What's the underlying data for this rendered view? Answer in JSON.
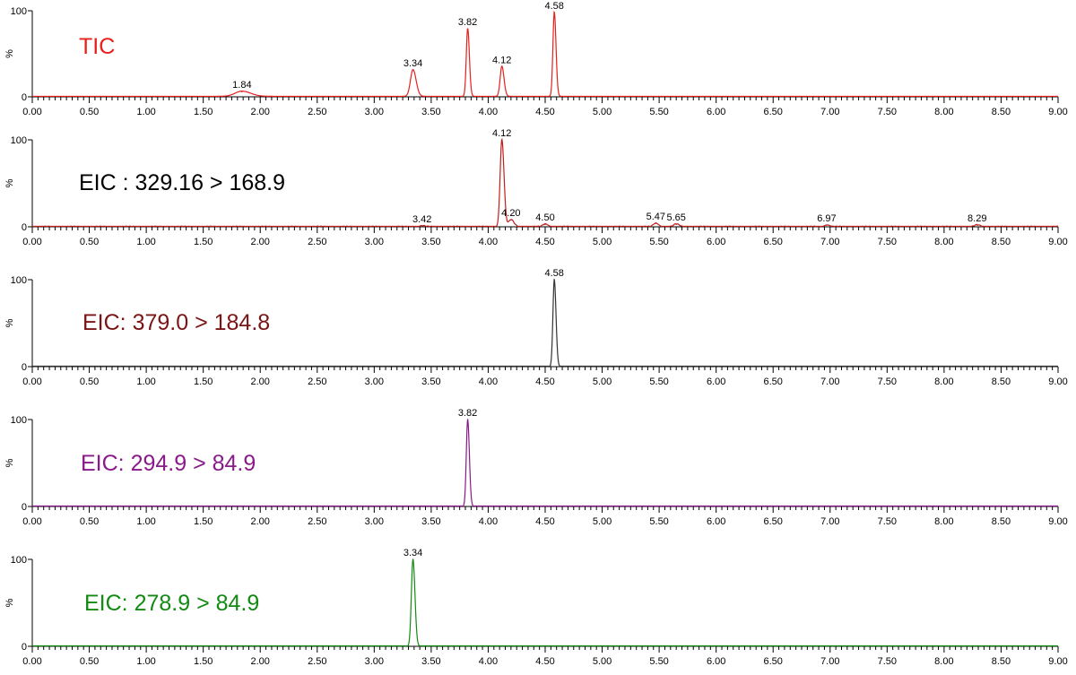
{
  "colors": {
    "axis": "#000000",
    "panel_0": "#e8201c",
    "panel_1": "#000000",
    "panel_2": "#7b1414",
    "panel_3": "#8a1a8a",
    "panel_4": "#138a13",
    "trace_0": "#e8201c",
    "trace_1": "#c0201c",
    "trace_2": "#333333",
    "trace_3": "#8a1a8a",
    "trace_4": "#138a13"
  },
  "chart_data": [
    {
      "type": "line",
      "title": "TIC",
      "xlabel": "",
      "ylabel": "%",
      "xlim": [
        0.0,
        9.0
      ],
      "ylim": [
        0,
        100
      ],
      "y_ticks": [
        "0",
        "100"
      ],
      "x_tick_labels": [
        "0.00",
        "0.50",
        "1.00",
        "1.50",
        "2.00",
        "2.50",
        "3.00",
        "3.50",
        "4.00",
        "4.50",
        "5.00",
        "5.50",
        "6.00",
        "6.50",
        "7.00",
        "7.50",
        "8.00",
        "8.50",
        "9.00"
      ],
      "peaks": [
        {
          "x": 1.84,
          "height": 6,
          "label": "1.84"
        },
        {
          "x": 3.34,
          "height": 31,
          "label": "3.34"
        },
        {
          "x": 3.82,
          "height": 79,
          "label": "3.82"
        },
        {
          "x": 4.12,
          "height": 35,
          "label": "4.12"
        },
        {
          "x": 4.58,
          "height": 98,
          "label": "4.58"
        }
      ]
    },
    {
      "type": "line",
      "title": "EIC : 329.16 > 168.9",
      "xlabel": "",
      "ylabel": "%",
      "xlim": [
        0.0,
        9.0
      ],
      "ylim": [
        0,
        100
      ],
      "y_ticks": [
        "0",
        "100"
      ],
      "x_tick_labels": [
        "0.00",
        "0.50",
        "1.00",
        "1.50",
        "2.00",
        "2.50",
        "3.00",
        "3.50",
        "4.00",
        "4.50",
        "5.00",
        "5.50",
        "6.00",
        "6.50",
        "7.00",
        "7.50",
        "8.00",
        "8.50",
        "9.00"
      ],
      "peaks": [
        {
          "x": 3.42,
          "height": 1,
          "label": "3.42"
        },
        {
          "x": 4.12,
          "height": 100,
          "label": "4.12"
        },
        {
          "x": 4.2,
          "height": 8,
          "label": "4.20"
        },
        {
          "x": 4.5,
          "height": 3,
          "label": "4.50"
        },
        {
          "x": 5.47,
          "height": 4,
          "label": "5.47"
        },
        {
          "x": 5.65,
          "height": 3,
          "label": "5.65"
        },
        {
          "x": 6.97,
          "height": 2,
          "label": "6.97"
        },
        {
          "x": 8.29,
          "height": 2,
          "label": "8.29"
        }
      ]
    },
    {
      "type": "line",
      "title": "EIC: 379.0 > 184.8",
      "xlabel": "",
      "ylabel": "%",
      "xlim": [
        0.0,
        9.0
      ],
      "ylim": [
        0,
        100
      ],
      "y_ticks": [
        "0",
        "100"
      ],
      "x_tick_labels": [
        "0.00",
        "0.50",
        "1.00",
        "1.50",
        "2.00",
        "2.50",
        "3.00",
        "3.50",
        "4.00",
        "4.50",
        "5.00",
        "5.50",
        "6.00",
        "6.50",
        "7.00",
        "7.50",
        "8.00",
        "8.50",
        "9.00"
      ],
      "peaks": [
        {
          "x": 4.58,
          "height": 100,
          "label": "4.58"
        }
      ]
    },
    {
      "type": "line",
      "title": "EIC: 294.9 > 84.9",
      "xlabel": "",
      "ylabel": "%",
      "xlim": [
        0.0,
        9.0
      ],
      "ylim": [
        0,
        100
      ],
      "y_ticks": [
        "0",
        "100"
      ],
      "x_tick_labels": [
        "0.00",
        "0.50",
        "1.00",
        "1.50",
        "2.00",
        "2.50",
        "3.00",
        "3.50",
        "4.00",
        "4.50",
        "5.00",
        "5.50",
        "6.00",
        "6.50",
        "7.00",
        "7.50",
        "8.00",
        "8.50",
        "9.00"
      ],
      "peaks": [
        {
          "x": 3.82,
          "height": 100,
          "label": "3.82"
        }
      ]
    },
    {
      "type": "line",
      "title": "EIC: 278.9 > 84.9",
      "xlabel": "",
      "ylabel": "%",
      "xlim": [
        0.0,
        9.0
      ],
      "ylim": [
        0,
        100
      ],
      "y_ticks": [
        "0",
        "100"
      ],
      "x_tick_labels": [
        "0.00",
        "0.50",
        "1.00",
        "1.50",
        "2.00",
        "2.50",
        "3.00",
        "3.50",
        "4.00",
        "4.50",
        "5.00",
        "5.50",
        "6.00",
        "6.50",
        "7.00",
        "7.50",
        "8.00",
        "8.50",
        "9.00"
      ],
      "peaks": [
        {
          "x": 3.34,
          "height": 100,
          "label": "3.34"
        }
      ]
    }
  ]
}
